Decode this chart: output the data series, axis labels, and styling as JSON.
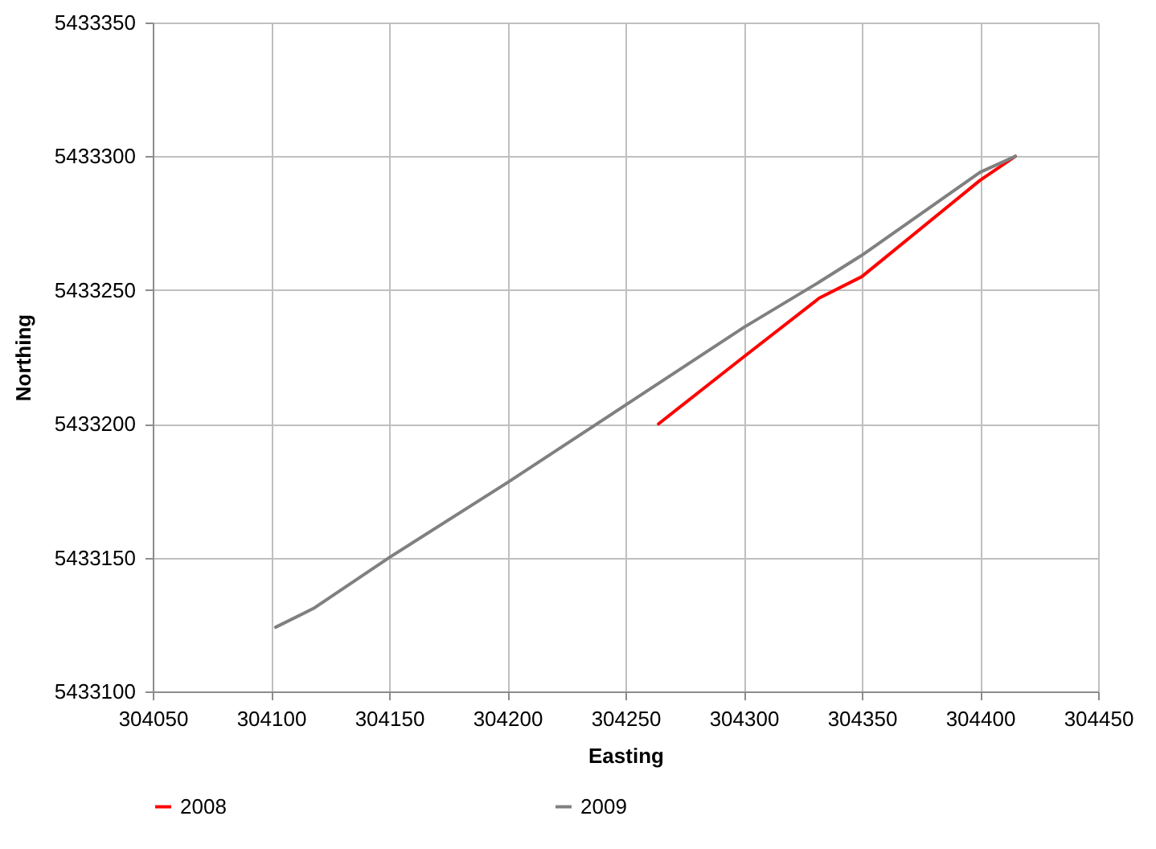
{
  "chart_data": {
    "type": "line",
    "xlabel": "Easting",
    "ylabel": "Northing",
    "xlim": [
      304050,
      304450
    ],
    "xticks": [
      304050,
      304100,
      304150,
      304200,
      304250,
      304300,
      304350,
      304400,
      304450
    ],
    "ylim": [
      5433100,
      5433350
    ],
    "yticks": [
      5433100,
      5433150,
      5433200,
      5433250,
      5433300,
      5433350
    ],
    "grid": true,
    "legend": "bottom",
    "marker": "none",
    "line_style": "solid",
    "series": [
      {
        "name": "2008",
        "color": "#ff0000",
        "x": [
          304264,
          304300,
          304332,
          304350,
          304400,
          304415
        ],
        "values": [
          5433200,
          5433225,
          5433247,
          5433255,
          5433291,
          5433300
        ]
      },
      {
        "name": "2009",
        "color": "#808080",
        "x": [
          304102,
          304118,
          304150,
          304200,
          304250,
          304300,
          304332,
          304350,
          304400,
          304415
        ],
        "values": [
          5433124,
          5433131,
          5433150,
          5433178,
          5433207,
          5433236,
          5433253,
          5433263,
          5433294,
          5433300
        ]
      }
    ]
  }
}
